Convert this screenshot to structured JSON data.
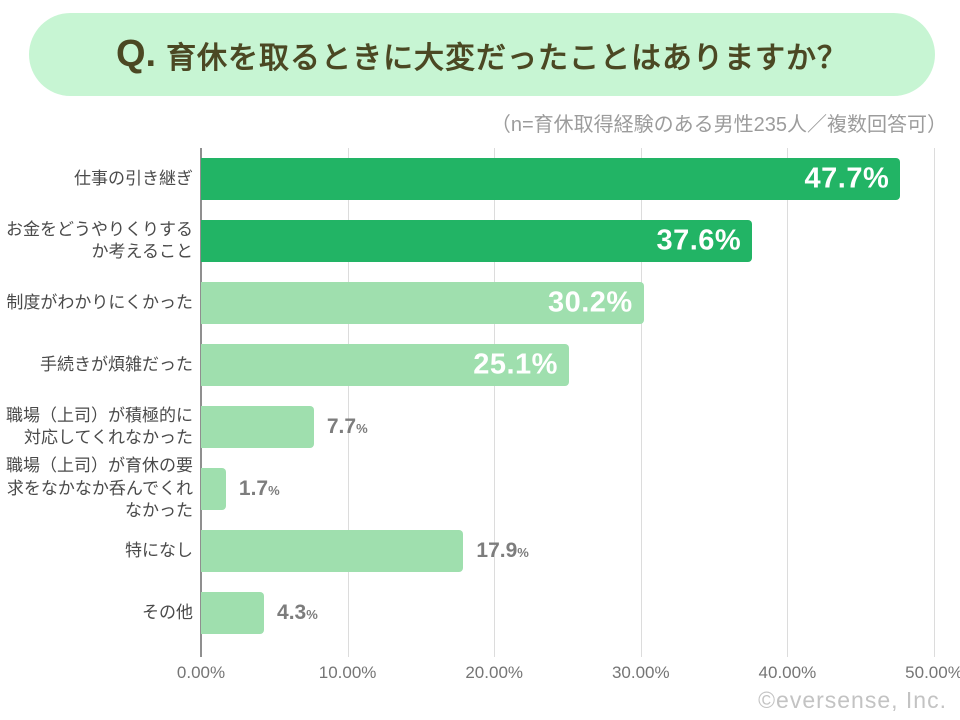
{
  "banner": {
    "prefix": "Q.",
    "title": "育休を取るときに大変だったことはありますか？"
  },
  "subtitle": "（n=育休取得経験のある男性235人／複数回答可）",
  "footer": "©eversense, Inc.",
  "chart_data": {
    "type": "bar",
    "orientation": "horizontal",
    "title": "育休を取るときに大変だったことはありますか？",
    "xlabel": "",
    "ylabel": "",
    "xlim": [
      0,
      50
    ],
    "grid": true,
    "legend": "none",
    "x_ticks": [
      0,
      10,
      20,
      30,
      40,
      50
    ],
    "x_tick_labels": [
      "0.00%",
      "10.00%",
      "20.00%",
      "30.00%",
      "40.00%",
      "50.00%"
    ],
    "categories": [
      "仕事の引き継ぎ",
      "お金をどうやりくりするか考えること",
      "制度がわかりにくかった",
      "手続きが煩雑だった",
      "職場（上司）が積極的に対応してくれなかった",
      "職場（上司）が育休の要求をなかなか呑んでくれなかった",
      "特になし",
      "その他"
    ],
    "category_lines": [
      [
        "仕事の引き継ぎ"
      ],
      [
        "お金をどうやりくりする",
        "か考えること"
      ],
      [
        "制度がわかりにくかった"
      ],
      [
        "手続きが煩雑だった"
      ],
      [
        "職場（上司）が積極的に",
        "対応してくれなかった"
      ],
      [
        "職場（上司）が育休の要",
        "求をなかなか呑んでくれ",
        "なかった"
      ],
      [
        "特になし"
      ],
      [
        "その他"
      ]
    ],
    "values": [
      47.7,
      37.6,
      30.2,
      25.1,
      7.7,
      1.7,
      17.9,
      4.3
    ],
    "value_labels": [
      "47.7%",
      "37.6%",
      "30.2%",
      "25.1%",
      "7.7%",
      "1.7%",
      "17.9%",
      "4.3%"
    ],
    "bar_styles": [
      "dark",
      "dark",
      "light",
      "light",
      "light",
      "light",
      "light",
      "light"
    ],
    "value_label_positions": [
      "inside",
      "inside",
      "inside",
      "inside",
      "outside",
      "outside",
      "outside",
      "outside"
    ],
    "colors": {
      "bar_dark": "#22b465",
      "bar_light": "#9fdfae",
      "value_inside_text": "#ffffff",
      "value_outside_text": "#7d7d7d",
      "banner_bg": "#c7f5d3",
      "banner_text": "#4b4823",
      "gridline": "#dcdcdc",
      "axis_line": "#8f8f8f"
    }
  }
}
